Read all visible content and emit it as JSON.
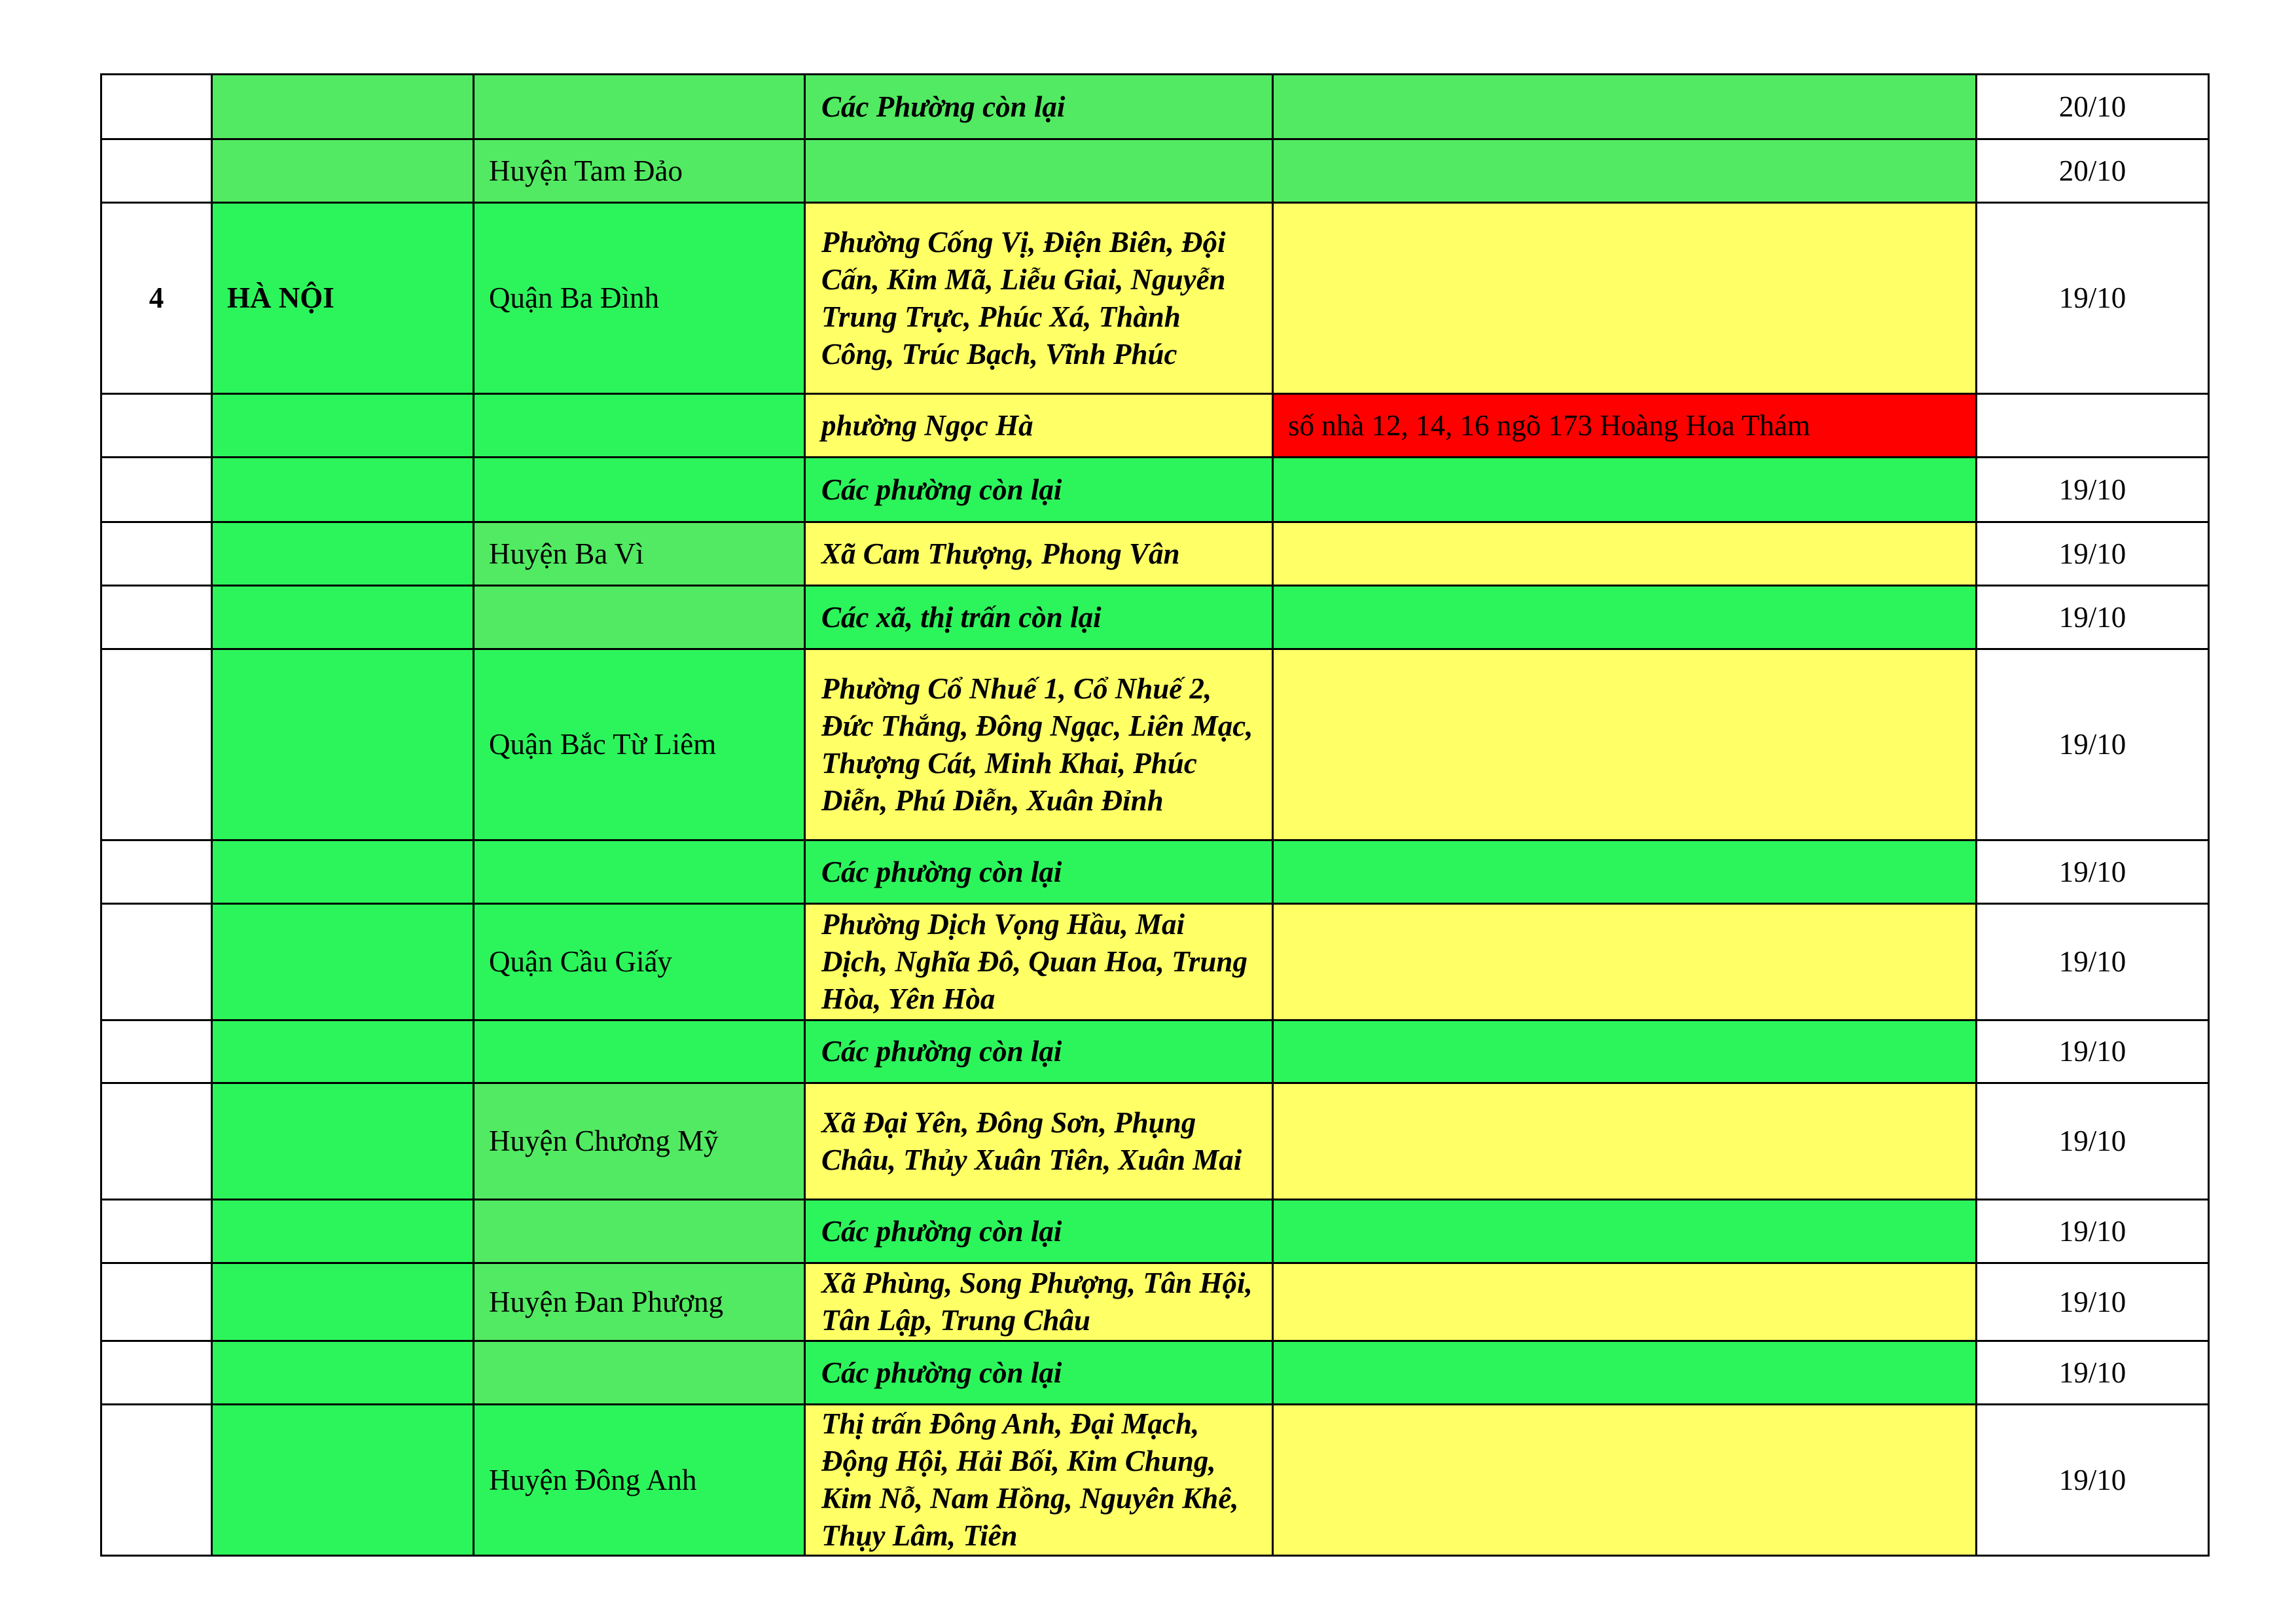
{
  "colors": {
    "light_green": "#52ea62",
    "green": "#2cf55b",
    "yellow": "#ffff66",
    "red": "#ff0000"
  },
  "rows": [
    {
      "stt": "",
      "province": "",
      "district": "",
      "ward": "Các Phường còn lại",
      "detail": "",
      "date": "20/10"
    },
    {
      "stt": "",
      "province": "",
      "district": "Huyện Tam Đảo",
      "ward": "",
      "detail": "",
      "date": "20/10"
    },
    {
      "stt": "4",
      "province": "HÀ NỘI",
      "district": "Quận Ba Đình",
      "ward": "Phường Cống Vị, Điện Biên, Đội Cấn, Kim Mã, Liễu Giai, Nguyễn Trung Trực, Phúc Xá, Thành Công, Trúc Bạch, Vĩnh Phúc",
      "detail": "",
      "date": "19/10"
    },
    {
      "stt": "",
      "province": "",
      "district": "",
      "ward": "phường Ngọc Hà",
      "detail": "số nhà 12, 14, 16 ngõ 173 Hoàng Hoa Thám",
      "date": ""
    },
    {
      "stt": "",
      "province": "",
      "district": "",
      "ward": "Các phường còn lại",
      "detail": "",
      "date": "19/10"
    },
    {
      "stt": "",
      "province": "",
      "district": "Huyện Ba Vì",
      "ward": "Xã Cam Thượng, Phong Vân",
      "detail": "",
      "date": "19/10"
    },
    {
      "stt": "",
      "province": "",
      "district": "",
      "ward": "Các xã, thị trấn còn lại",
      "detail": "",
      "date": "19/10"
    },
    {
      "stt": "",
      "province": "",
      "district": "Quận Bắc Từ Liêm",
      "ward": "Phường Cổ Nhuế 1, Cổ Nhuế 2, Đức Thắng, Đông Ngạc, Liên Mạc, Thượng Cát, Minh Khai, Phúc Diễn, Phú Diễn, Xuân Đỉnh",
      "detail": "",
      "date": "19/10"
    },
    {
      "stt": "",
      "province": "",
      "district": "",
      "ward": "Các phường còn lại",
      "detail": "",
      "date": "19/10"
    },
    {
      "stt": "",
      "province": "",
      "district": "Quận Cầu Giấy",
      "ward": "Phường Dịch Vọng Hầu, Mai Dịch, Nghĩa Đô, Quan Hoa, Trung Hòa, Yên Hòa",
      "detail": "",
      "date": "19/10"
    },
    {
      "stt": "",
      "province": "",
      "district": "",
      "ward": "Các phường còn lại",
      "detail": "",
      "date": "19/10"
    },
    {
      "stt": "",
      "province": "",
      "district": "Huyện Chương Mỹ",
      "ward": "Xã Đại Yên, Đông Sơn, Phụng Châu, Thủy Xuân Tiên, Xuân Mai",
      "detail": "",
      "date": "19/10"
    },
    {
      "stt": "",
      "province": "",
      "district": "",
      "ward": "Các phường còn lại",
      "detail": "",
      "date": "19/10"
    },
    {
      "stt": "",
      "province": "",
      "district": "Huyện Đan Phượng",
      "ward": "Xã Phùng, Song Phượng, Tân Hội, Tân Lập, Trung Châu",
      "detail": "",
      "date": "19/10"
    },
    {
      "stt": "",
      "province": "",
      "district": "",
      "ward": "Các phường còn lại",
      "detail": "",
      "date": "19/10"
    },
    {
      "stt": "",
      "province": "",
      "district": "Huyện Đông Anh",
      "ward": "Thị trấn Đông Anh, Đại Mạch, Động Hội, Hải Bối, Kim Chung, Kim Nỗ, Nam Hồng, Nguyên Khê, Thụy Lâm, Tiên",
      "detail": "",
      "date": "19/10"
    }
  ]
}
